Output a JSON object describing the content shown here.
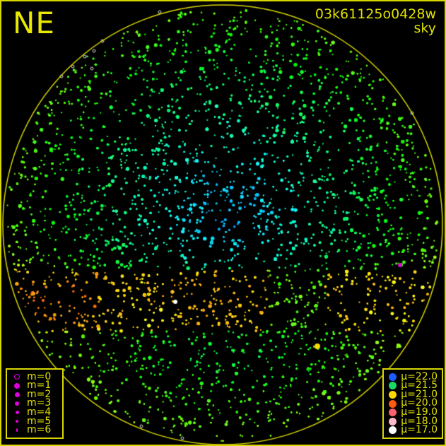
{
  "direction_label": "NE",
  "image_id": "03k61125o0428w",
  "image_type": "sky",
  "horizon_color": "#d8d800",
  "magnitude_legend": [
    {
      "label": "m=0",
      "style": "ring"
    },
    {
      "label": "m=1",
      "style": "filled"
    },
    {
      "label": "m=2",
      "style": "filled"
    },
    {
      "label": "m=3",
      "style": "filled"
    },
    {
      "label": "m=4",
      "style": "filled"
    },
    {
      "label": "m=5",
      "style": "filled"
    },
    {
      "label": "m=6",
      "style": "filled"
    }
  ],
  "magnitude_color": "#e000e0",
  "brightness_legend": [
    {
      "label": "μ=22.0",
      "color": "#1e5cff"
    },
    {
      "label": "μ=21.5",
      "color": "#19d86a"
    },
    {
      "label": "μ=21.0",
      "color": "#ffd800"
    },
    {
      "label": "μ=20.0",
      "color": "#ff5a10"
    },
    {
      "label": "μ=19.0",
      "color": "#ff6070"
    },
    {
      "label": "μ=18.0",
      "color": "#ffb8c8"
    },
    {
      "label": "μ=17.0",
      "color": "#ffffff"
    }
  ]
}
